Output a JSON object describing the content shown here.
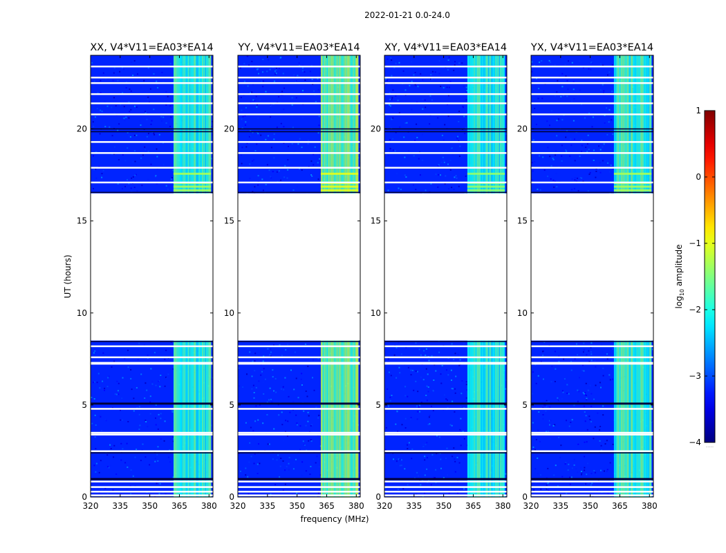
{
  "chart_data": {
    "type": "heatmap",
    "suptitle": "2022-01-21 0.0-24.0",
    "xlabel": "frequency (MHz)",
    "ylabel": "UT (hours)",
    "xlim": [
      320,
      382
    ],
    "ylim": [
      0,
      24
    ],
    "xticks": [
      320,
      335,
      350,
      365,
      380
    ],
    "yticks": [
      0,
      5,
      10,
      15,
      20
    ],
    "panels": [
      {
        "title": "XX, V4*V11=EA03*EA14",
        "band_level": -1.9
      },
      {
        "title": "YY, V4*V11=EA03*EA14",
        "band_level": -1.6
      },
      {
        "title": "XY, V4*V11=EA03*EA14",
        "band_level": -2.0
      },
      {
        "title": "YX, V4*V11=EA03*EA14",
        "band_level": -1.9
      }
    ],
    "background_level": -3.2,
    "rfi_band_mhz": [
      362,
      381
    ],
    "data_gap_hours": [
      8.5,
      16.5
    ],
    "flagged_time_rows_hours": [
      0.1,
      0.3,
      0.55,
      0.85,
      2.5,
      3.4,
      3.5,
      4.8,
      7.25,
      7.3,
      7.6,
      8.2,
      17.1,
      17.9,
      18.7,
      19.3,
      20.8,
      21.4,
      21.9,
      22.5,
      22.8,
      23.4
    ],
    "dark_time_rows_hours": [
      0.95,
      1.0,
      2.4,
      5.05,
      5.1,
      19.85,
      20.0,
      16.55,
      8.45
    ],
    "bright_rows_hours": [
      16.6,
      16.8,
      17.0,
      17.5
    ],
    "colorbar": {
      "label": "log",
      "label_sub": "10",
      "label_rest": " amplitude",
      "min": -4,
      "max": 1,
      "ticks": [
        1,
        0,
        -1,
        -2,
        -3,
        -4
      ],
      "tick_labels": [
        "1",
        "0",
        "−1",
        "−2",
        "−3",
        "−4"
      ],
      "note": "....."
    }
  }
}
